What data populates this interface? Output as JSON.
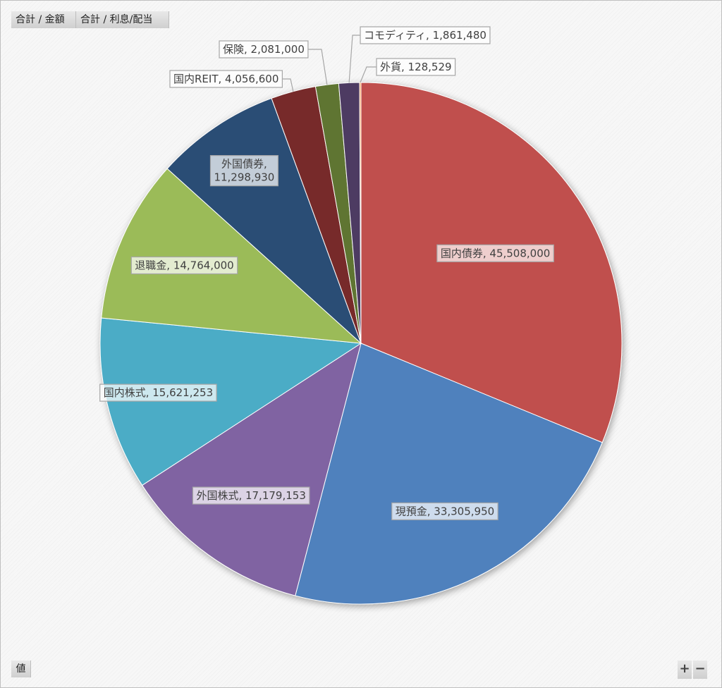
{
  "field_buttons": {
    "sum_amount": "合計 / 金額",
    "sum_interest": "合計 / 利息/配当",
    "values": "値"
  },
  "zoom": {
    "plus": "+",
    "minus": "−"
  },
  "chart_data": {
    "type": "pie",
    "title": "",
    "slices": [
      {
        "label": "国内債券",
        "value": 45508000,
        "value_text": "45,508,000",
        "color": "#c0504d"
      },
      {
        "label": "現預金",
        "value": 33305950,
        "value_text": "33,305,950",
        "color": "#4f81bd"
      },
      {
        "label": "外国株式",
        "value": 17179153,
        "value_text": "17,179,153",
        "color": "#8064a2"
      },
      {
        "label": "国内株式",
        "value": 15621253,
        "value_text": "15,621,253",
        "color": "#4bacc6"
      },
      {
        "label": "退職金",
        "value": 14764000,
        "value_text": "14,764,000",
        "color": "#9bbb59"
      },
      {
        "label": "外国債券",
        "value": 11298930,
        "value_text": "11,298,930",
        "color": "#2c4d75"
      },
      {
        "label": "国内REIT",
        "value": 4056600,
        "value_text": "4,056,600",
        "color": "#772c2a"
      },
      {
        "label": "保険",
        "value": 2081000,
        "value_text": "2,081,000",
        "color": "#5f7530"
      },
      {
        "label": "コモディティ",
        "value": 1861480,
        "value_text": "1,861,480",
        "color": "#4d3b62"
      },
      {
        "label": "外貨",
        "value": 128529,
        "value_text": "128,529",
        "color": "#f79646"
      }
    ]
  }
}
